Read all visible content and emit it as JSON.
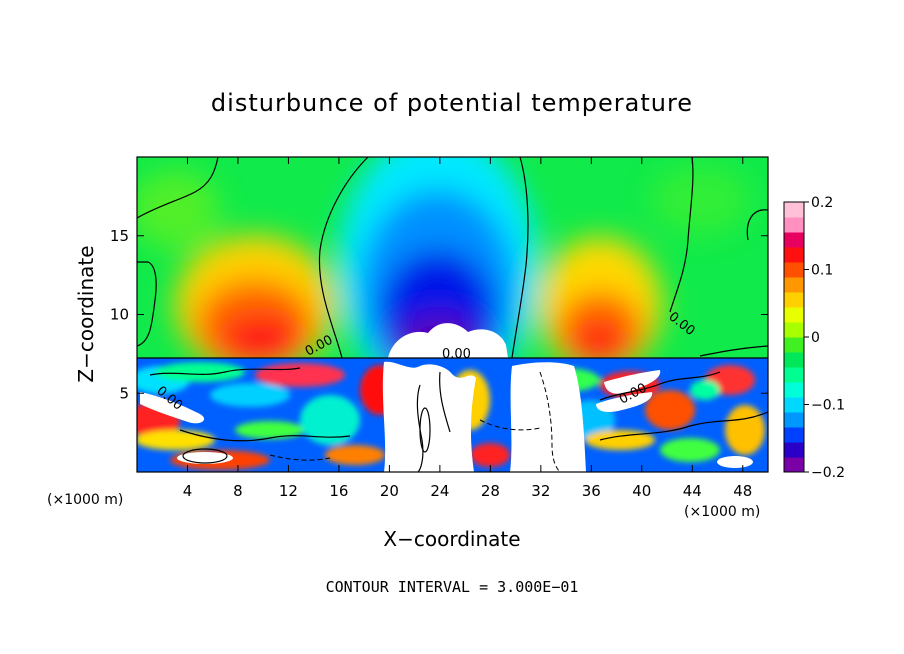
{
  "chart_data": {
    "type": "heatmap",
    "title": "disturbunce of potential temperature",
    "xlabel": "X−coordinate",
    "ylabel": "Z−coordinate",
    "x_unit_left": "(×1000 m)",
    "x_unit_right": "(×1000 m)",
    "xlim": [
      0,
      50
    ],
    "ylim": [
      0,
      20
    ],
    "x_ticks": [
      4,
      8,
      12,
      16,
      20,
      24,
      28,
      32,
      36,
      40,
      44,
      48
    ],
    "y_ticks": [
      5,
      10,
      15
    ],
    "colorbar": {
      "min": -0.2,
      "max": 0.2,
      "tick_values": [
        0.2,
        0.1,
        0,
        -0.1,
        -0.2
      ],
      "tick_labels": [
        "0.2",
        "0.1",
        "0",
        "−0.1",
        "−0.2"
      ],
      "colors": [
        "#7a00a8",
        "#2a00c8",
        "#0040ff",
        "#0098ff",
        "#00d8ff",
        "#00ffd8",
        "#00ff90",
        "#00e85a",
        "#40f020",
        "#a8ff00",
        "#e8ff00",
        "#ffd000",
        "#ff9800",
        "#ff5000",
        "#ff1010",
        "#e80060",
        "#ff90c0",
        "#ffc0d8"
      ]
    },
    "contour_interval_text": "CONTOUR INTERVAL = 3.000E−01",
    "contour_labels": [
      "0.00",
      "0.00",
      "0.00",
      "0.00",
      "0.00"
    ],
    "features": [
      {
        "x": 10,
        "z": 11,
        "value": 0.13
      },
      {
        "x": 36,
        "z": 11,
        "value": 0.12
      },
      {
        "x": 25,
        "z": 10,
        "value": -0.18
      },
      {
        "x": 25,
        "z": 15.5,
        "value": -0.06
      },
      {
        "x": 3,
        "z": 17,
        "value": 0.02
      },
      {
        "x": 47,
        "z": 16,
        "value": 0.0
      }
    ]
  }
}
